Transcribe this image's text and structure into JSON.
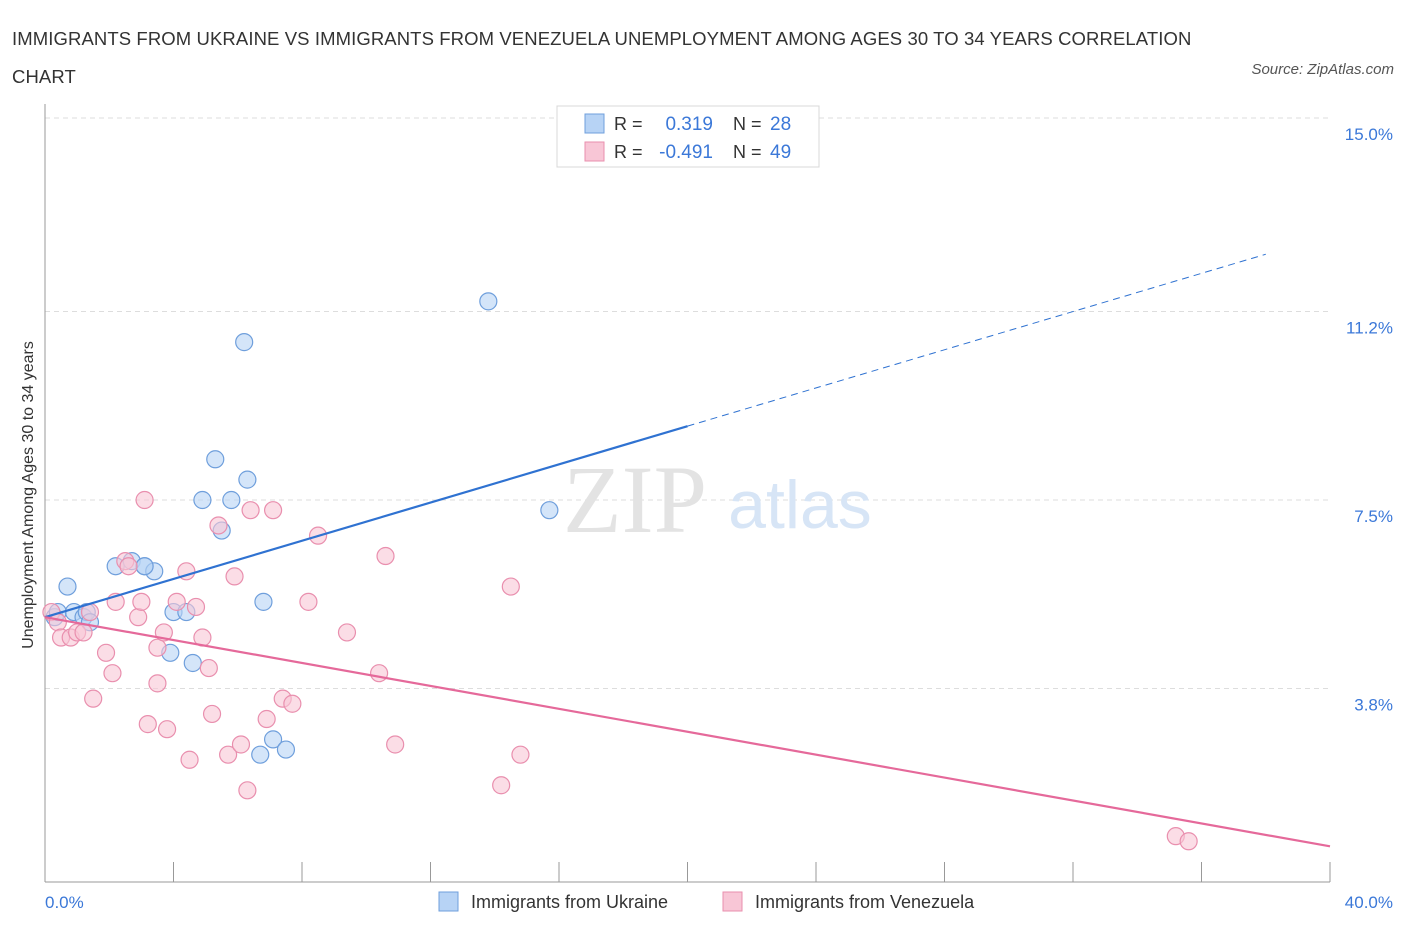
{
  "title": "IMMIGRANTS FROM UKRAINE VS IMMIGRANTS FROM VENEZUELA UNEMPLOYMENT AMONG AGES 30 TO 34 YEARS CORRELATION CHART",
  "source": "Source: ZipAtlas.com",
  "watermark": {
    "zip": "ZIP",
    "atlas": "atlas"
  },
  "colors": {
    "ukraine_fill": "#b7d3f5",
    "ukraine_stroke": "#6f9fdc",
    "ukraine_line": "#2f72d1",
    "venezuela_fill": "#f8c6d6",
    "venezuela_stroke": "#e98fae",
    "venezuela_line": "#e5699a",
    "axis_label": "#3b78d8",
    "grid": "#dddddd"
  },
  "legend_stats": [
    {
      "r_label": "R =",
      "r_value": "0.319",
      "n_label": "N =",
      "n_value": "28"
    },
    {
      "r_label": "R =",
      "r_value": "-0.491",
      "n_label": "N =",
      "n_value": "49"
    }
  ],
  "chart_data": {
    "type": "scatter",
    "title": "IMMIGRANTS FROM UKRAINE VS IMMIGRANTS FROM VENEZUELA UNEMPLOYMENT AMONG AGES 30 TO 34 YEARS CORRELATION CHART",
    "xlabel": "",
    "ylabel": "Unemployment Among Ages 30 to 34 years",
    "xlim": [
      0,
      40
    ],
    "ylim": [
      0,
      15
    ],
    "x_tick_labels": [
      "0.0%",
      "40.0%"
    ],
    "y_ticks": [
      3.8,
      7.5,
      11.2,
      15.0
    ],
    "y_tick_labels": [
      "3.8%",
      "7.5%",
      "11.2%",
      "15.0%"
    ],
    "grid": true,
    "legend_position": "bottom",
    "series": [
      {
        "name": "Immigrants from Ukraine",
        "color": "#6f9fdc",
        "points": [
          [
            0.3,
            5.2
          ],
          [
            0.4,
            5.3
          ],
          [
            0.7,
            5.8
          ],
          [
            0.9,
            5.3
          ],
          [
            1.2,
            5.2
          ],
          [
            1.3,
            5.3
          ],
          [
            1.4,
            5.1
          ],
          [
            2.2,
            6.2
          ],
          [
            2.7,
            6.3
          ],
          [
            3.1,
            6.2
          ],
          [
            3.4,
            6.1
          ],
          [
            3.9,
            4.5
          ],
          [
            3.1,
            6.2
          ],
          [
            4.0,
            5.3
          ],
          [
            4.4,
            5.3
          ],
          [
            4.6,
            4.3
          ],
          [
            4.9,
            7.5
          ],
          [
            5.3,
            8.3
          ],
          [
            5.5,
            6.9
          ],
          [
            5.8,
            7.5
          ],
          [
            6.2,
            10.6
          ],
          [
            6.3,
            7.9
          ],
          [
            6.7,
            2.5
          ],
          [
            6.8,
            5.5
          ],
          [
            7.1,
            2.8
          ],
          [
            7.5,
            2.6
          ],
          [
            13.8,
            11.4
          ],
          [
            15.7,
            7.3
          ]
        ],
        "trend": {
          "x": [
            0,
            20
          ],
          "y": [
            5.2,
            8.95
          ],
          "dashed_extension_to_x": 38
        }
      },
      {
        "name": "Immigrants from Venezuela",
        "color": "#e98fae",
        "points": [
          [
            0.2,
            5.3
          ],
          [
            0.4,
            5.1
          ],
          [
            0.5,
            4.8
          ],
          [
            0.8,
            4.8
          ],
          [
            1.0,
            4.9
          ],
          [
            1.2,
            4.9
          ],
          [
            1.4,
            5.3
          ],
          [
            1.5,
            3.6
          ],
          [
            1.9,
            4.5
          ],
          [
            2.1,
            4.1
          ],
          [
            2.2,
            5.5
          ],
          [
            2.5,
            6.3
          ],
          [
            2.6,
            6.2
          ],
          [
            2.9,
            5.2
          ],
          [
            3.0,
            5.5
          ],
          [
            3.1,
            7.5
          ],
          [
            3.2,
            3.1
          ],
          [
            3.5,
            3.9
          ],
          [
            3.5,
            4.6
          ],
          [
            3.7,
            4.9
          ],
          [
            3.8,
            3.0
          ],
          [
            4.1,
            5.5
          ],
          [
            4.4,
            6.1
          ],
          [
            4.5,
            2.4
          ],
          [
            4.7,
            5.4
          ],
          [
            4.9,
            4.8
          ],
          [
            5.1,
            4.2
          ],
          [
            5.2,
            3.3
          ],
          [
            5.4,
            7.0
          ],
          [
            5.7,
            2.5
          ],
          [
            5.9,
            6.0
          ],
          [
            6.1,
            2.7
          ],
          [
            6.3,
            1.8
          ],
          [
            6.4,
            7.3
          ],
          [
            6.9,
            3.2
          ],
          [
            7.1,
            7.3
          ],
          [
            7.4,
            3.6
          ],
          [
            7.7,
            3.5
          ],
          [
            8.2,
            5.5
          ],
          [
            8.5,
            6.8
          ],
          [
            9.4,
            4.9
          ],
          [
            10.4,
            4.1
          ],
          [
            10.6,
            6.4
          ],
          [
            10.9,
            2.7
          ],
          [
            14.2,
            1.9
          ],
          [
            14.5,
            5.8
          ],
          [
            14.8,
            2.5
          ],
          [
            35.2,
            0.9
          ],
          [
            35.6,
            0.8
          ]
        ],
        "trend": {
          "x": [
            0,
            40
          ],
          "y": [
            5.2,
            0.7
          ]
        }
      }
    ]
  }
}
